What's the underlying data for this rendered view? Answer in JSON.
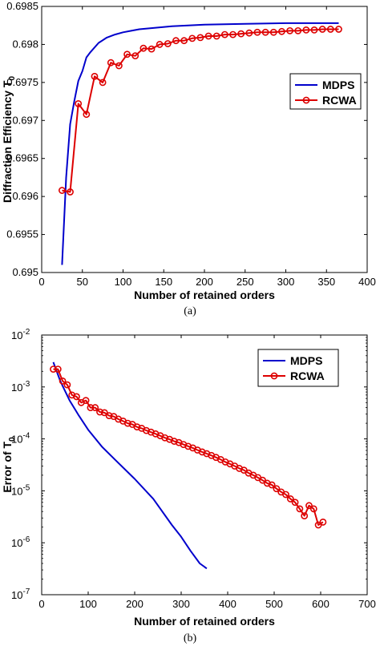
{
  "chart_data": [
    {
      "type": "line",
      "panel_label": "(a)",
      "xlabel": "Number of retained orders",
      "ylabel": "Diffraction Efficiency T",
      "ylabel_subscript": "0",
      "xlim": [
        0,
        400
      ],
      "ylim": [
        0.695,
        0.6985
      ],
      "x_ticks": [
        0,
        50,
        100,
        150,
        200,
        250,
        300,
        350,
        400
      ],
      "x_tick_labels": [
        "0",
        "50",
        "100",
        "150",
        "200",
        "250",
        "300",
        "350",
        "400"
      ],
      "y_ticks": [
        0.695,
        0.6955,
        0.696,
        0.6965,
        0.697,
        0.6975,
        0.698,
        0.6985
      ],
      "y_tick_labels": [
        "0.695",
        "0.6955",
        "0.696",
        "0.6965",
        "0.697",
        "0.6975",
        "0.698",
        "0.6985"
      ],
      "legend_position": "right",
      "series": [
        {
          "name": "MDPS",
          "color": "#0000cc",
          "marker": "none",
          "x": [
            25,
            30,
            35,
            40,
            45,
            50,
            55,
            60,
            70,
            80,
            90,
            100,
            110,
            120,
            140,
            160,
            180,
            200,
            250,
            300,
            365
          ],
          "y": [
            0.6951,
            0.69625,
            0.69695,
            0.69725,
            0.69752,
            0.69765,
            0.69783,
            0.6979,
            0.69802,
            0.69809,
            0.69813,
            0.69816,
            0.69818,
            0.6982,
            0.69822,
            0.69824,
            0.69825,
            0.69826,
            0.69827,
            0.69828,
            0.69828
          ]
        },
        {
          "name": "RCWA",
          "color": "#dd0000",
          "marker": "circle",
          "x": [
            25,
            35,
            45,
            55,
            65,
            75,
            85,
            95,
            105,
            115,
            125,
            135,
            145,
            155,
            165,
            175,
            185,
            195,
            205,
            215,
            225,
            235,
            245,
            255,
            265,
            275,
            285,
            295,
            305,
            315,
            325,
            335,
            345,
            355,
            365
          ],
          "y": [
            0.69608,
            0.69606,
            0.69722,
            0.69708,
            0.69758,
            0.6975,
            0.69776,
            0.69772,
            0.69787,
            0.69785,
            0.69795,
            0.69794,
            0.698,
            0.69801,
            0.69805,
            0.69805,
            0.69808,
            0.69809,
            0.69811,
            0.69811,
            0.69813,
            0.69813,
            0.69814,
            0.69815,
            0.69816,
            0.69816,
            0.69816,
            0.69817,
            0.69818,
            0.69818,
            0.69819,
            0.69819,
            0.6982,
            0.6982,
            0.6982
          ]
        }
      ]
    },
    {
      "type": "line",
      "panel_label": "(b)",
      "xlabel": "Number of retained orders",
      "ylabel": "Error of T",
      "ylabel_subscript": "0",
      "yscale": "log",
      "xlim": [
        0,
        700
      ],
      "ylim": [
        1e-07,
        0.01
      ],
      "x_ticks": [
        0,
        100,
        200,
        300,
        400,
        500,
        600,
        700
      ],
      "x_tick_labels": [
        "0",
        "100",
        "200",
        "300",
        "400",
        "500",
        "600",
        "700"
      ],
      "y_ticks": [
        1e-07,
        1e-06,
        1e-05,
        0.0001,
        0.001,
        0.01
      ],
      "y_tick_mantissa": "10",
      "y_tick_exponents": [
        "-7",
        "-6",
        "-5",
        "-4",
        "-3",
        "-2"
      ],
      "legend_position": "top-right",
      "series": [
        {
          "name": "MDPS",
          "color": "#0000cc",
          "marker": "none",
          "x": [
            25,
            40,
            60,
            80,
            100,
            130,
            160,
            200,
            240,
            280,
            300,
            320,
            340,
            355
          ],
          "y": [
            0.003,
            0.0013,
            0.00055,
            0.00028,
            0.00015,
            7e-05,
            3.8e-05,
            1.7e-05,
            7e-06,
            2.2e-06,
            1.3e-06,
            7e-07,
            4e-07,
            3.2e-07
          ]
        },
        {
          "name": "RCWA",
          "color": "#dd0000",
          "marker": "circle",
          "x": [
            25,
            35,
            45,
            55,
            65,
            75,
            85,
            95,
            105,
            115,
            125,
            135,
            145,
            155,
            165,
            175,
            185,
            195,
            205,
            215,
            225,
            235,
            245,
            255,
            265,
            275,
            285,
            295,
            305,
            315,
            325,
            335,
            345,
            355,
            365,
            375,
            385,
            395,
            405,
            415,
            425,
            435,
            445,
            455,
            465,
            475,
            485,
            495,
            505,
            515,
            525,
            535,
            545,
            555,
            565,
            575,
            585,
            595,
            605
          ],
          "y": [
            0.0022,
            0.0022,
            0.0013,
            0.0011,
            0.0007,
            0.00065,
            0.0005,
            0.00055,
            0.0004,
            0.0004,
            0.00033,
            0.00032,
            0.00028,
            0.00027,
            0.00024,
            0.00022,
            0.0002,
            0.00019,
            0.00017,
            0.00016,
            0.000145,
            0.000135,
            0.000125,
            0.000115,
            0.000105,
            9.8e-05,
            9e-05,
            8.5e-05,
            7.8e-05,
            7.2e-05,
            6.7e-05,
            6.1e-05,
            5.6e-05,
            5.2e-05,
            4.8e-05,
            4.4e-05,
            4e-05,
            3.6e-05,
            3.3e-05,
            3e-05,
            2.7e-05,
            2.5e-05,
            2.2e-05,
            2e-05,
            1.8e-05,
            1.6e-05,
            1.4e-05,
            1.3e-05,
            1.1e-05,
            9.5e-06,
            8.5e-06,
            7e-06,
            6e-06,
            4.5e-06,
            3.3e-06,
            5.2e-06,
            4.5e-06,
            2.2e-06,
            2.5e-06
          ]
        }
      ]
    }
  ]
}
